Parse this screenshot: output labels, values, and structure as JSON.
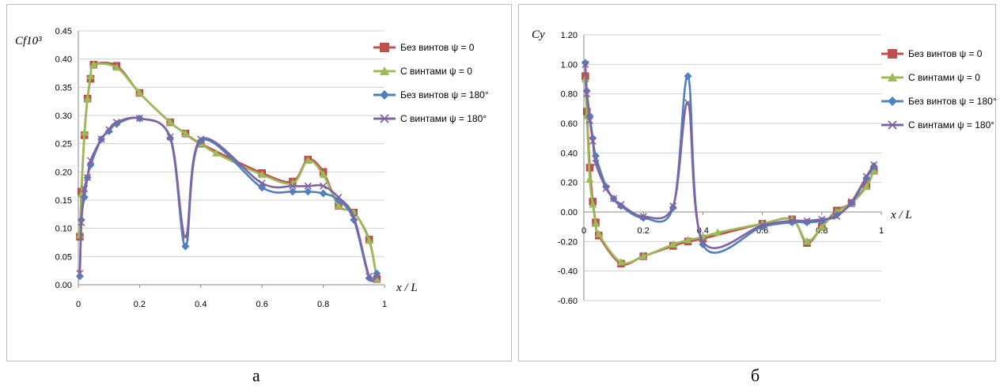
{
  "captions": {
    "a": "а",
    "b": "б"
  },
  "chart_data": [
    {
      "type": "line",
      "ylabel": "Cf10³",
      "xlabel": "x / L",
      "xlim": [
        0,
        1
      ],
      "ylim": [
        0,
        0.45
      ],
      "x_ticks": [
        "0",
        "0.2",
        "0.4",
        "0.6",
        "0.8",
        "1"
      ],
      "y_ticks": [
        "0.00",
        "0.05",
        "0.10",
        "0.15",
        "0.20",
        "0.25",
        "0.30",
        "0.35",
        "0.40",
        "0.45"
      ],
      "grid": "horizontal",
      "legend_position": "right",
      "series": [
        {
          "name": "Без винтов ψ = 0",
          "color": "#c0504d",
          "marker": "square",
          "points": [
            [
              0.005,
              0.085
            ],
            [
              0.01,
              0.165
            ],
            [
              0.02,
              0.265
            ],
            [
              0.03,
              0.33
            ],
            [
              0.04,
              0.365
            ],
            [
              0.05,
              0.39
            ],
            [
              0.125,
              0.388
            ],
            [
              0.2,
              0.34
            ],
            [
              0.3,
              0.288
            ],
            [
              0.35,
              0.268
            ],
            [
              0.4,
              0.25
            ],
            [
              0.6,
              0.198
            ],
            [
              0.7,
              0.183
            ],
            [
              0.75,
              0.222
            ],
            [
              0.8,
              0.2
            ],
            [
              0.85,
              0.14
            ],
            [
              0.9,
              0.128
            ],
            [
              0.95,
              0.08
            ],
            [
              0.975,
              0.01
            ]
          ]
        },
        {
          "name": "С винтами ψ = 0",
          "color": "#9bbb59",
          "marker": "triangle",
          "points": [
            [
              0.005,
              0.088
            ],
            [
              0.01,
              0.16
            ],
            [
              0.02,
              0.27
            ],
            [
              0.03,
              0.33
            ],
            [
              0.04,
              0.37
            ],
            [
              0.05,
              0.39
            ],
            [
              0.125,
              0.385
            ],
            [
              0.2,
              0.34
            ],
            [
              0.3,
              0.288
            ],
            [
              0.35,
              0.268
            ],
            [
              0.4,
              0.25
            ],
            [
              0.45,
              0.233
            ],
            [
              0.6,
              0.195
            ],
            [
              0.7,
              0.18
            ],
            [
              0.75,
              0.22
            ],
            [
              0.8,
              0.195
            ],
            [
              0.85,
              0.14
            ],
            [
              0.9,
              0.128
            ],
            [
              0.95,
              0.078
            ],
            [
              0.975,
              0.01
            ]
          ]
        },
        {
          "name": "Без винтов ψ = 180°",
          "color": "#4f81bd",
          "marker": "diamond",
          "points": [
            [
              0.005,
              0.015
            ],
            [
              0.01,
              0.115
            ],
            [
              0.02,
              0.155
            ],
            [
              0.03,
              0.19
            ],
            [
              0.04,
              0.212
            ],
            [
              0.075,
              0.258
            ],
            [
              0.1,
              0.272
            ],
            [
              0.125,
              0.285
            ],
            [
              0.2,
              0.295
            ],
            [
              0.3,
              0.26
            ],
            [
              0.35,
              0.068
            ],
            [
              0.4,
              0.255
            ],
            [
              0.6,
              0.172
            ],
            [
              0.7,
              0.165
            ],
            [
              0.75,
              0.165
            ],
            [
              0.8,
              0.162
            ],
            [
              0.85,
              0.15
            ],
            [
              0.9,
              0.115
            ],
            [
              0.95,
              0.012
            ],
            [
              0.975,
              0.02
            ]
          ]
        },
        {
          "name": "С винтами ψ = 180°",
          "color": "#8064a2",
          "marker": "x",
          "points": [
            [
              0.005,
              0.02
            ],
            [
              0.01,
              0.11
            ],
            [
              0.02,
              0.17
            ],
            [
              0.03,
              0.19
            ],
            [
              0.04,
              0.22
            ],
            [
              0.075,
              0.258
            ],
            [
              0.1,
              0.275
            ],
            [
              0.125,
              0.288
            ],
            [
              0.2,
              0.295
            ],
            [
              0.3,
              0.262
            ],
            [
              0.35,
              0.085
            ],
            [
              0.4,
              0.258
            ],
            [
              0.6,
              0.18
            ],
            [
              0.7,
              0.175
            ],
            [
              0.75,
              0.175
            ],
            [
              0.8,
              0.175
            ],
            [
              0.85,
              0.155
            ],
            [
              0.9,
              0.12
            ],
            [
              0.95,
              0.015
            ],
            [
              0.975,
              0.015
            ]
          ]
        }
      ]
    },
    {
      "type": "line",
      "ylabel": "Cy",
      "xlabel": "x / L",
      "xlim": [
        0,
        1
      ],
      "ylim": [
        -0.6,
        1.2
      ],
      "x_ticks": [
        "0",
        "0.2",
        "0.4",
        "0.6",
        "0.8",
        "1"
      ],
      "y_ticks": [
        "-0.60",
        "-0.40",
        "-0.20",
        "0.00",
        "0.20",
        "0.40",
        "0.60",
        "0.80",
        "1.00",
        "1.20"
      ],
      "grid": "horizontal",
      "legend_position": "right",
      "series": [
        {
          "name": "Без винтов ψ = 0",
          "color": "#c0504d",
          "marker": "square",
          "points": [
            [
              0.005,
              0.92
            ],
            [
              0.01,
              0.68
            ],
            [
              0.02,
              0.3
            ],
            [
              0.03,
              0.07
            ],
            [
              0.04,
              -0.07
            ],
            [
              0.05,
              -0.16
            ],
            [
              0.125,
              -0.35
            ],
            [
              0.2,
              -0.3
            ],
            [
              0.3,
              -0.23
            ],
            [
              0.35,
              -0.2
            ],
            [
              0.4,
              -0.18
            ],
            [
              0.6,
              -0.08
            ],
            [
              0.7,
              -0.05
            ],
            [
              0.75,
              -0.21
            ],
            [
              0.8,
              -0.1
            ],
            [
              0.85,
              0.01
            ],
            [
              0.9,
              0.06
            ],
            [
              0.95,
              0.18
            ],
            [
              0.975,
              0.28
            ]
          ]
        },
        {
          "name": "С винтами ψ = 0",
          "color": "#9bbb59",
          "marker": "triangle",
          "points": [
            [
              0.005,
              0.9
            ],
            [
              0.01,
              0.65
            ],
            [
              0.02,
              0.22
            ],
            [
              0.03,
              0.05
            ],
            [
              0.04,
              -0.08
            ],
            [
              0.05,
              -0.15
            ],
            [
              0.125,
              -0.34
            ],
            [
              0.2,
              -0.3
            ],
            [
              0.3,
              -0.22
            ],
            [
              0.35,
              -0.19
            ],
            [
              0.4,
              -0.17
            ],
            [
              0.45,
              -0.14
            ],
            [
              0.6,
              -0.08
            ],
            [
              0.7,
              -0.05
            ],
            [
              0.75,
              -0.2
            ],
            [
              0.8,
              -0.1
            ],
            [
              0.85,
              0.0
            ],
            [
              0.9,
              0.06
            ],
            [
              0.95,
              0.17
            ],
            [
              0.975,
              0.28
            ]
          ]
        },
        {
          "name": "Без винтов ψ = 180°",
          "color": "#4f81bd",
          "marker": "diamond",
          "points": [
            [
              0.005,
              1.01
            ],
            [
              0.01,
              0.82
            ],
            [
              0.02,
              0.65
            ],
            [
              0.03,
              0.5
            ],
            [
              0.04,
              0.38
            ],
            [
              0.075,
              0.17
            ],
            [
              0.1,
              0.09
            ],
            [
              0.125,
              0.04
            ],
            [
              0.2,
              -0.04
            ],
            [
              0.3,
              0.03
            ],
            [
              0.35,
              0.92
            ],
            [
              0.4,
              -0.22
            ],
            [
              0.6,
              -0.1
            ],
            [
              0.7,
              -0.07
            ],
            [
              0.75,
              -0.07
            ],
            [
              0.8,
              -0.06
            ],
            [
              0.85,
              -0.02
            ],
            [
              0.9,
              0.06
            ],
            [
              0.95,
              0.23
            ],
            [
              0.975,
              0.31
            ]
          ]
        },
        {
          "name": "С винтами ψ = 180°",
          "color": "#8064a2",
          "marker": "x",
          "points": [
            [
              0.005,
              1.0
            ],
            [
              0.01,
              0.8
            ],
            [
              0.02,
              0.62
            ],
            [
              0.03,
              0.48
            ],
            [
              0.04,
              0.33
            ],
            [
              0.075,
              0.16
            ],
            [
              0.1,
              0.09
            ],
            [
              0.125,
              0.05
            ],
            [
              0.2,
              -0.03
            ],
            [
              0.3,
              0.04
            ],
            [
              0.35,
              0.74
            ],
            [
              0.4,
              -0.2
            ],
            [
              0.6,
              -0.09
            ],
            [
              0.7,
              -0.06
            ],
            [
              0.75,
              -0.06
            ],
            [
              0.8,
              -0.05
            ],
            [
              0.85,
              -0.03
            ],
            [
              0.9,
              0.07
            ],
            [
              0.95,
              0.24
            ],
            [
              0.975,
              0.32
            ]
          ]
        }
      ]
    }
  ]
}
